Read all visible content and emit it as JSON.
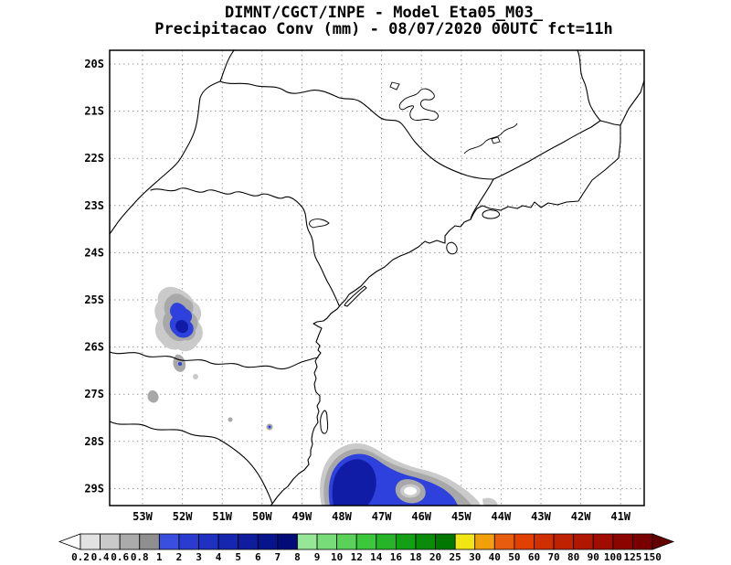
{
  "title": {
    "line1": "DIMNT/CGCT/INPE -  Model Eta05_M03_",
    "line2": "Precipitacao Conv (mm) - 08/07/2020 00UTC fct=11h"
  },
  "axes": {
    "lat_labels": [
      "20S",
      "21S",
      "22S",
      "23S",
      "24S",
      "25S",
      "26S",
      "27S",
      "28S",
      "29S"
    ],
    "lon_labels": [
      "53W",
      "52W",
      "51W",
      "50W",
      "49W",
      "48W",
      "47W",
      "46W",
      "45W",
      "44W",
      "43W",
      "42W",
      "41W"
    ]
  },
  "colorbar": {
    "units": "mm",
    "tick_labels": [
      "0.2",
      "0.4",
      "0.6",
      "0.8",
      "1",
      "2",
      "3",
      "4",
      "5",
      "6",
      "7",
      "8",
      "9",
      "10",
      "12",
      "14",
      "16",
      "18",
      "20",
      "25",
      "30",
      "40",
      "50",
      "60",
      "70",
      "80",
      "90",
      "100",
      "125",
      "150"
    ],
    "segment_colors": [
      "#e2e2e2",
      "#c9c9c9",
      "#ababab",
      "#8f8f8f",
      "#3a4fe0",
      "#2b3bd0",
      "#2030c0",
      "#1726ae",
      "#0f1d9c",
      "#08148a",
      "#020c78",
      "#96e696",
      "#78dc78",
      "#5ad25a",
      "#3cc83c",
      "#28b428",
      "#14a014",
      "#0a8c0a",
      "#007800",
      "#f0e614",
      "#f0a00a",
      "#e85c10",
      "#e04000",
      "#d03000",
      "#c02200",
      "#b01600",
      "#a00c00",
      "#8c0400",
      "#780000"
    ],
    "below_min_color": "#ffffff",
    "above_max_color": "#640000"
  },
  "map_colors": {
    "fringe_light": "#cacaca",
    "fringe_mid": "#a8a8a8",
    "rain_blue": "#2e41dd",
    "rain_dark_blue": "#111ca6",
    "hole_white": "#ffffff",
    "grid": "#9a9a9a",
    "outline": "#000000",
    "background": "#ffffff"
  },
  "precip_features": [
    {
      "location": "western Parana (~52W, 25.0S-26.0S)",
      "peak_range_mm": "4-6",
      "fringe_mm": "0.2-1"
    },
    {
      "location": "coastal Santa Catarina / adjacent Atlantic (~48W-45.5W, 28.3S-29.4S)",
      "peak_range_mm": "5-7",
      "fringe_mm": "0.2-1",
      "note": "clear hole near 46.3W 29.0S"
    },
    {
      "location": "scattered specks (~51.5W-50W, 27.4S-27.8S)",
      "peak_range_mm": "0.2-1"
    }
  ]
}
